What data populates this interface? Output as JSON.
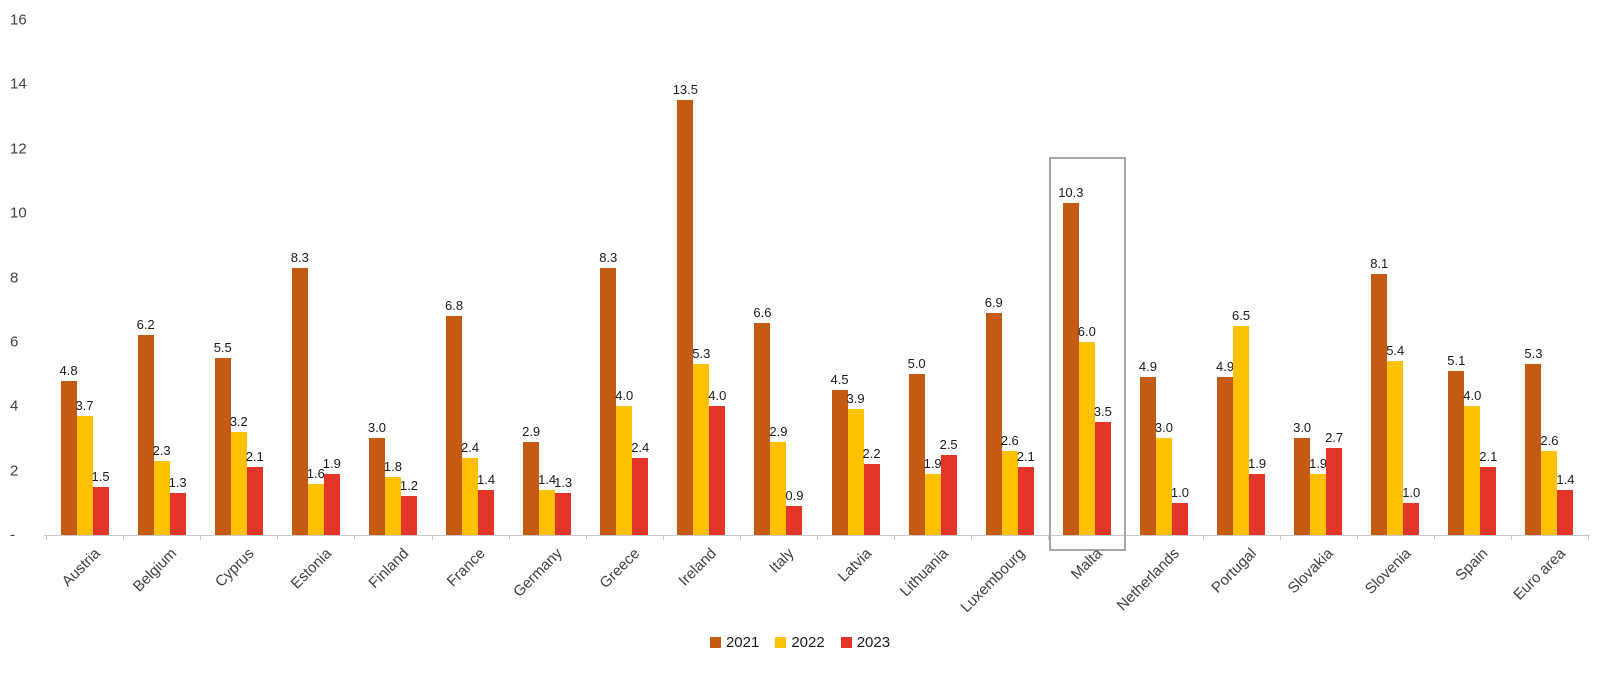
{
  "chart_data": {
    "type": "bar",
    "title": "",
    "categories": [
      "Austria",
      "Belgium",
      "Cyprus",
      "Estonia",
      "Finland",
      "France",
      "Germany",
      "Greece",
      "Ireland",
      "Italy",
      "Latvia",
      "Lithuania",
      "Luxembourg",
      "Malta",
      "Netherlands",
      "Portugal",
      "Slovakia",
      "Slovenia",
      "Spain",
      "Euro area"
    ],
    "series": [
      {
        "name": "2021",
        "color": "#C55A11",
        "values": [
          4.8,
          6.2,
          5.5,
          8.3,
          3.0,
          6.8,
          2.9,
          8.3,
          13.5,
          6.6,
          4.5,
          5.0,
          6.9,
          10.3,
          4.9,
          4.9,
          3.0,
          8.1,
          5.1,
          5.3
        ]
      },
      {
        "name": "2022",
        "color": "#FFC000",
        "values": [
          3.7,
          2.3,
          3.2,
          1.6,
          1.8,
          2.4,
          1.4,
          4.0,
          5.3,
          2.9,
          3.9,
          1.9,
          2.6,
          6.0,
          3.0,
          6.5,
          1.9,
          5.4,
          4.0,
          2.6
        ]
      },
      {
        "name": "2023",
        "color": "#E4352B",
        "values": [
          1.5,
          1.3,
          2.1,
          1.9,
          1.2,
          1.4,
          1.3,
          2.4,
          4.0,
          0.9,
          2.2,
          2.5,
          2.1,
          3.5,
          1.0,
          1.9,
          2.7,
          1.0,
          2.1,
          1.4
        ]
      }
    ],
    "ylim": [
      0,
      16
    ],
    "y_ticks": [
      {
        "label": "16",
        "value": 16
      },
      {
        "label": "14",
        "value": 14
      },
      {
        "label": "12",
        "value": 12
      },
      {
        "label": "10",
        "value": 10
      },
      {
        "label": "8",
        "value": 8
      },
      {
        "label": "6",
        "value": 6
      },
      {
        "label": "4",
        "value": 4
      },
      {
        "label": "2",
        "value": 2
      },
      {
        "label": "-",
        "value": 0
      }
    ],
    "grid": false,
    "legend_position": "bottom",
    "highlight_category": "Malta",
    "value_format": "0.0",
    "xlabel": "",
    "ylabel": ""
  }
}
